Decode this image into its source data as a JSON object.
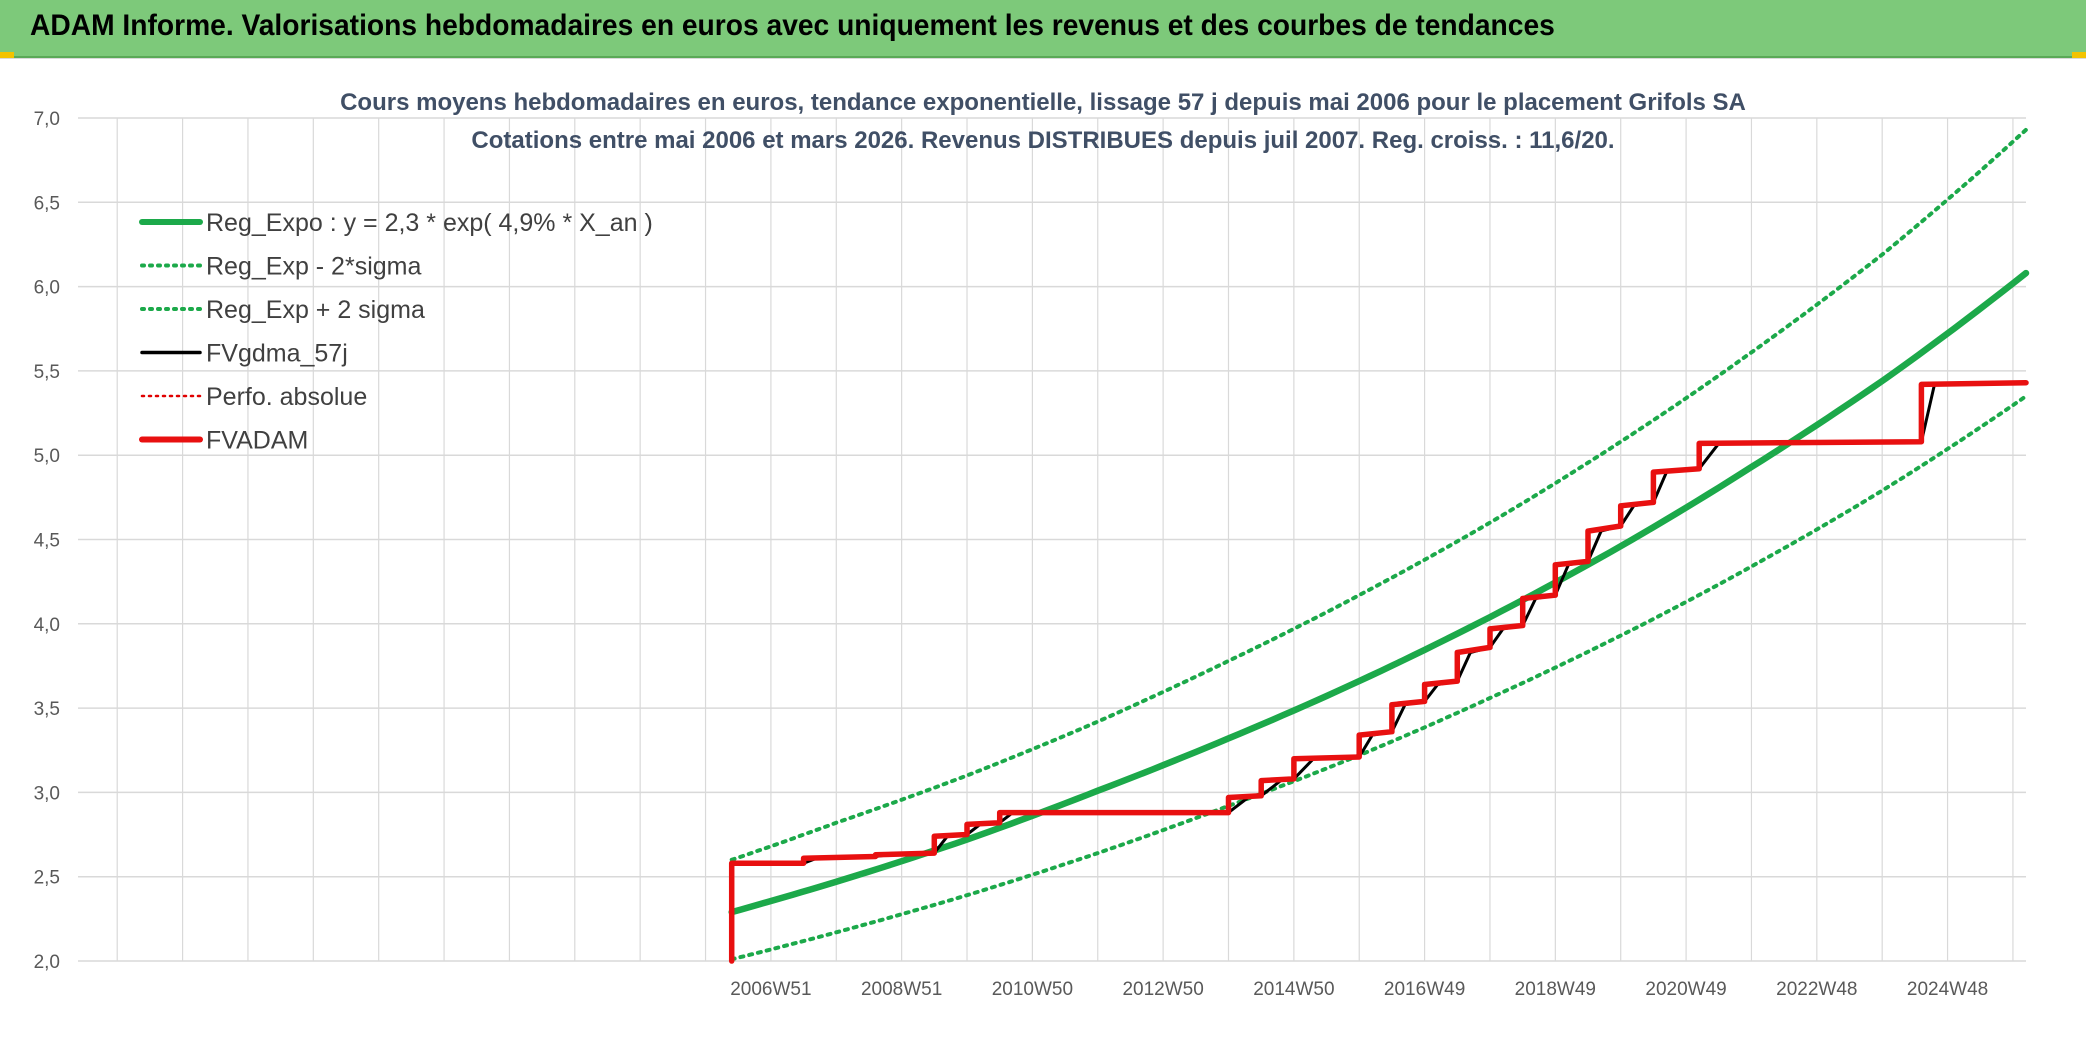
{
  "banner": {
    "title": "ADAM Informe. Valorisations hebdomadaires en euros avec uniquement les revenus et des courbes de tendances"
  },
  "colors": {
    "banner_bg": "#7dc97a",
    "reg_expo": "#1ca94a",
    "bands": "#1ca94a",
    "fvgdma": "#000000",
    "perfo": "#e00000",
    "fvadam": "#e81010",
    "grid": "#d9d9d9"
  },
  "chart_data": {
    "type": "line",
    "title_line1": "Cours moyens hebdomadaires en euros, tendance exponentielle, lissage 57 j depuis mai 2006 pour le placement Grifols SA",
    "title_line2": "Cotations entre mai 2006 et mars 2026. Revenus DISTRIBUES depuis juil 2007. Reg. croiss. : 11,6/20.",
    "ylim": [
      2.0,
      7.0
    ],
    "y_ticks": [
      "2,0",
      "2,5",
      "3,0",
      "3,5",
      "4,0",
      "4,5",
      "5,0",
      "5,5",
      "6,0",
      "6,5",
      "7,0"
    ],
    "xlim": [
      1996.4,
      2026.2
    ],
    "x_ticks": [
      {
        "t": 2007.0,
        "label": "2006W51"
      },
      {
        "t": 2009.0,
        "label": "2008W51"
      },
      {
        "t": 2011.0,
        "label": "2010W50"
      },
      {
        "t": 2013.0,
        "label": "2012W50"
      },
      {
        "t": 2015.0,
        "label": "2014W50"
      },
      {
        "t": 2017.0,
        "label": "2016W49"
      },
      {
        "t": 2019.0,
        "label": "2018W49"
      },
      {
        "t": 2021.0,
        "label": "2020W49"
      },
      {
        "t": 2023.0,
        "label": "2022W48"
      },
      {
        "t": 2025.0,
        "label": "2024W48"
      }
    ],
    "legend": [
      {
        "label": "Reg_Expo : y = 2,3 * exp( 4,9% *  X_an )",
        "style": "solid-thick",
        "color": "#1ca94a"
      },
      {
        "label": "Reg_Exp - 2*sigma",
        "style": "dotted",
        "color": "#1ca94a"
      },
      {
        "label": "Reg_Exp + 2 sigma",
        "style": "dotted",
        "color": "#1ca94a"
      },
      {
        "label": "FVgdma_57j",
        "style": "solid",
        "color": "#000000"
      },
      {
        "label": "Perfo. absolue",
        "style": "dotted-thin",
        "color": "#e00000"
      },
      {
        "label": "FVADAM",
        "style": "solid-thick",
        "color": "#e81010"
      }
    ],
    "legend_position": "top-left",
    "grid": true,
    "series": [
      {
        "name": "Reg_Expo : y = 2,3 * exp( 4,9% *  X_an )",
        "x": [
          2006.4,
          2008.0,
          2010.0,
          2012.0,
          2014.0,
          2016.0,
          2018.0,
          2020.0,
          2022.0,
          2024.0,
          2026.2
        ],
        "y": [
          2.29,
          2.47,
          2.72,
          3.01,
          3.32,
          3.66,
          4.04,
          4.46,
          4.93,
          5.44,
          6.08
        ]
      },
      {
        "name": "Reg_Exp - 2*sigma",
        "x": [
          2006.4,
          2008.0,
          2010.0,
          2012.0,
          2014.0,
          2016.0,
          2018.0,
          2020.0,
          2022.0,
          2024.0,
          2026.2
        ],
        "y": [
          2.01,
          2.17,
          2.39,
          2.64,
          2.92,
          3.22,
          3.56,
          3.93,
          4.34,
          4.79,
          5.35
        ]
      },
      {
        "name": "Reg_Exp + 2 sigma",
        "x": [
          2006.4,
          2008.0,
          2010.0,
          2012.0,
          2014.0,
          2016.0,
          2018.0,
          2020.0,
          2022.0,
          2024.0,
          2026.2
        ],
        "y": [
          2.6,
          2.82,
          3.1,
          3.42,
          3.78,
          4.17,
          4.6,
          5.08,
          5.61,
          6.19,
          6.93
        ]
      },
      {
        "name": "FVgdma_57j",
        "x": [
          2006.4,
          2006.4,
          2007.5,
          2007.7,
          2008.6,
          2008.8,
          2009.5,
          2009.7,
          2010.0,
          2010.2,
          2010.5,
          2010.7,
          2014.0,
          2014.3,
          2014.5,
          2014.8,
          2015.0,
          2015.3,
          2016.0,
          2016.2,
          2016.5,
          2016.7,
          2017.0,
          2017.2,
          2017.5,
          2017.7,
          2018.0,
          2018.2,
          2018.5,
          2018.7,
          2019.0,
          2019.2,
          2019.5,
          2019.7,
          2020.0,
          2020.2,
          2020.5,
          2020.7,
          2021.2,
          2021.5,
          2024.6,
          2024.8,
          2026.2
        ],
        "y": [
          2.0,
          2.58,
          2.58,
          2.61,
          2.62,
          2.63,
          2.64,
          2.74,
          2.75,
          2.81,
          2.82,
          2.88,
          2.88,
          2.97,
          2.98,
          3.07,
          3.08,
          3.2,
          3.21,
          3.34,
          3.36,
          3.52,
          3.54,
          3.64,
          3.66,
          3.83,
          3.86,
          3.97,
          3.99,
          4.15,
          4.17,
          4.35,
          4.37,
          4.55,
          4.58,
          4.7,
          4.72,
          4.9,
          4.92,
          5.07,
          5.08,
          5.42,
          5.43
        ]
      },
      {
        "name": "FVADAM",
        "x": [
          2006.4,
          2006.4,
          2007.5,
          2007.5,
          2008.6,
          2008.6,
          2009.5,
          2009.5,
          2010.0,
          2010.0,
          2010.5,
          2010.5,
          2014.0,
          2014.0,
          2014.5,
          2014.5,
          2015.0,
          2015.0,
          2016.0,
          2016.0,
          2016.5,
          2016.5,
          2017.0,
          2017.0,
          2017.5,
          2017.5,
          2018.0,
          2018.0,
          2018.5,
          2018.5,
          2019.0,
          2019.0,
          2019.5,
          2019.5,
          2020.0,
          2020.0,
          2020.5,
          2020.5,
          2021.2,
          2021.2,
          2024.6,
          2024.6,
          2026.2
        ],
        "y": [
          2.0,
          2.58,
          2.58,
          2.61,
          2.62,
          2.63,
          2.64,
          2.74,
          2.75,
          2.81,
          2.82,
          2.88,
          2.88,
          2.97,
          2.98,
          3.07,
          3.08,
          3.2,
          3.21,
          3.34,
          3.36,
          3.52,
          3.54,
          3.64,
          3.66,
          3.83,
          3.86,
          3.97,
          3.99,
          4.15,
          4.17,
          4.35,
          4.37,
          4.55,
          4.58,
          4.7,
          4.72,
          4.9,
          4.92,
          5.07,
          5.08,
          5.42,
          5.43
        ]
      }
    ]
  }
}
